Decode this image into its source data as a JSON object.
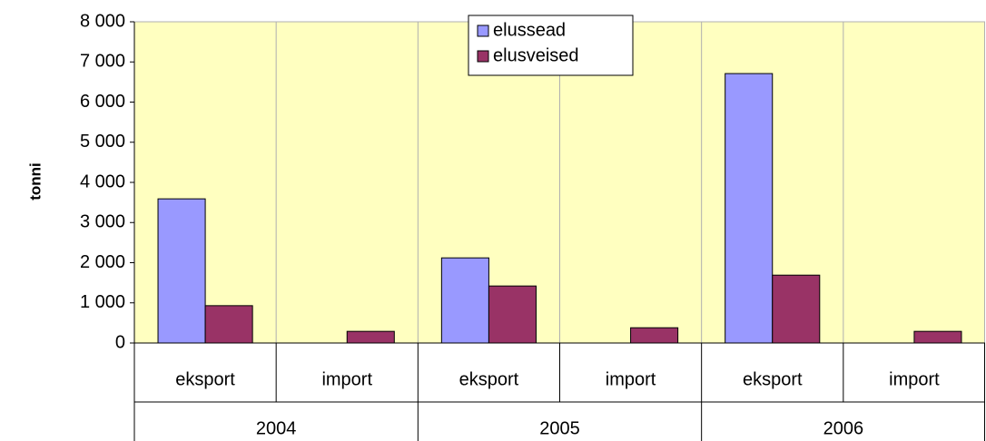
{
  "chart_data": {
    "type": "bar",
    "y_label": "tonni",
    "categories": [
      "eksport",
      "import",
      "eksport",
      "import",
      "eksport",
      "import"
    ],
    "groups": [
      "2004",
      "2005",
      "2006"
    ],
    "series": [
      {
        "name": "elussead",
        "color": "#9999ff",
        "values": [
          3590,
          0,
          2120,
          0,
          6710,
          0
        ]
      },
      {
        "name": "elusveised",
        "color": "#993366",
        "values": [
          930,
          290,
          1420,
          380,
          1690,
          290
        ]
      }
    ],
    "ylim": [
      0,
      8000
    ],
    "yticks": [
      0,
      {
        "value": 1000,
        "label": "1 000"
      },
      {
        "value": 2000,
        "label": "2 000"
      },
      {
        "value": 3000,
        "label": "3 000"
      },
      {
        "value": 4000,
        "label": "4 000"
      },
      {
        "value": 5000,
        "label": "5 000"
      },
      {
        "value": 6000,
        "label": "6 000"
      },
      {
        "value": 7000,
        "label": "7 000"
      },
      {
        "value": 8000,
        "label": "8 000"
      }
    ],
    "plot_background": "#ffffc0",
    "legend": "top"
  }
}
